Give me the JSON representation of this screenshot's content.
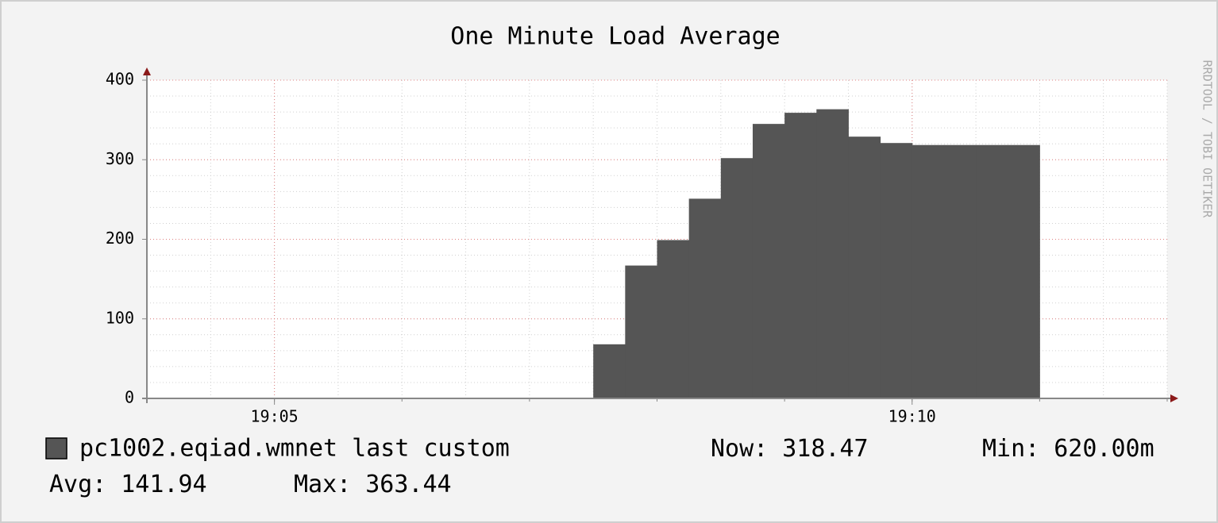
{
  "chart_data": {
    "type": "step-area",
    "title": "One Minute Load Average",
    "watermark": "RRDTOOL / TOBI OETIKER",
    "x": [
      "19:07:30",
      "19:07:45",
      "19:08:00",
      "19:08:15",
      "19:08:30",
      "19:08:45",
      "19:09:00",
      "19:09:15",
      "19:09:30",
      "19:09:45",
      "19:10:00",
      "19:10:15",
      "19:10:30",
      "19:10:45"
    ],
    "series": [
      {
        "name": "pc1002.eqiad.wmnet last custom",
        "color": "#555555",
        "values": [
          68,
          167,
          199,
          251,
          302,
          345,
          359,
          363.44,
          329,
          321,
          318.47,
          318.47,
          318.47,
          318.47
        ]
      }
    ],
    "xlim": [
      "19:04",
      "19:12"
    ],
    "xticks": [
      "19:05",
      "19:10"
    ],
    "ylim": [
      0,
      400
    ],
    "yticks": [
      0,
      100,
      200,
      300,
      400
    ],
    "grid": true,
    "stats": [
      {
        "label": "Now:",
        "value": 318.47
      },
      {
        "label": "Min:",
        "value": 0.62,
        "value_label": "620.00m"
      },
      {
        "label": "Avg:",
        "value": 141.94
      },
      {
        "label": "Max:",
        "value": 363.44
      }
    ]
  }
}
